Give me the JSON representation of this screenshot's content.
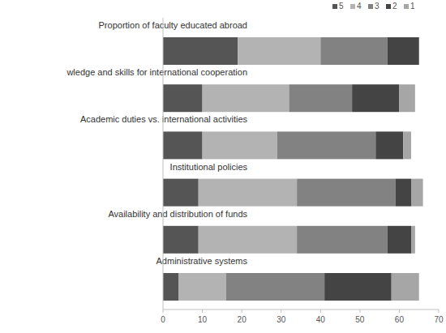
{
  "chart_data": {
    "type": "bar",
    "orientation": "horizontal",
    "stacked": true,
    "legend": "top-right",
    "grid": false,
    "categories": [
      "Proportion of faculty educated abroad",
      "wledge and skills for international cooperation",
      "Academic duties vs. international activities",
      "Institutional policies",
      "Availability and distribution of funds",
      "Administrative systems"
    ],
    "series": [
      {
        "name": "5",
        "color": "#555555",
        "values": [
          19,
          10,
          10,
          9,
          9,
          4
        ]
      },
      {
        "name": "4",
        "color": "#b3b3b3",
        "values": [
          21,
          22,
          19,
          25,
          25,
          12
        ]
      },
      {
        "name": "3",
        "color": "#828282",
        "values": [
          17,
          16,
          25,
          25,
          23,
          25
        ]
      },
      {
        "name": "2",
        "color": "#444444",
        "values": [
          8,
          12,
          7,
          4,
          6,
          17
        ]
      },
      {
        "name": "1",
        "color": "#a6a6a6",
        "values": [
          0,
          4,
          2,
          3,
          1,
          7
        ]
      }
    ],
    "xlim": [
      0,
      70
    ],
    "xticks": [
      0,
      10,
      20,
      30,
      40,
      50,
      60,
      70
    ]
  }
}
